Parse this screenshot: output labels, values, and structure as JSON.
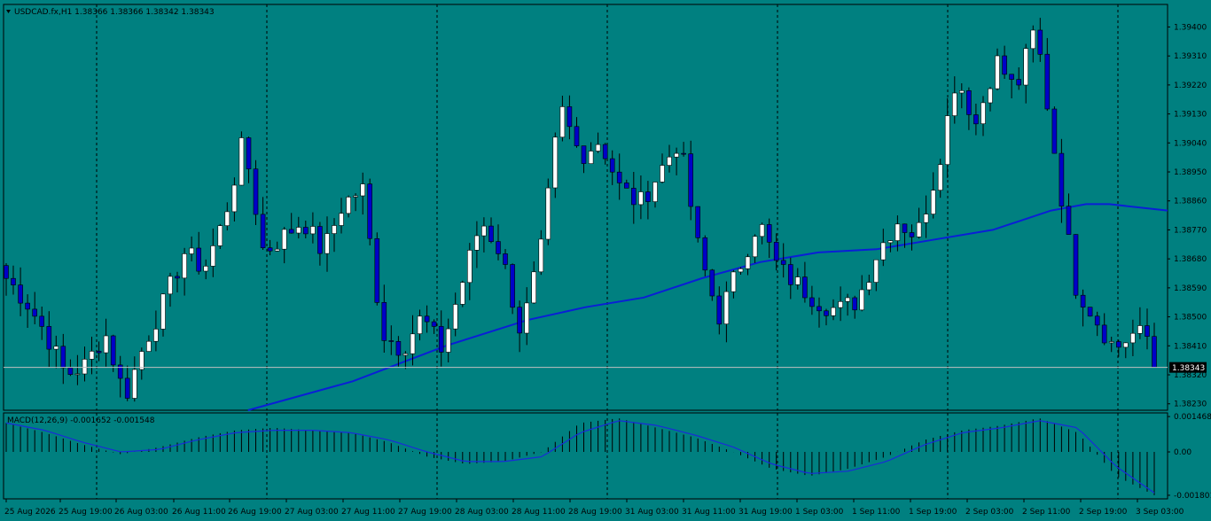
{
  "header": {
    "symbol_line": "USDCAD.fx,H1  1.38366 1.38366 1.38342 1.38343"
  },
  "macd_header": "MACD(12,26,9) -0.001652 -0.001548",
  "colors": {
    "background": "#008080",
    "bull_candle": "#ffffff",
    "bear_candle": "#0000c8",
    "wick": "#000000",
    "moving_average": "#0a1fd6",
    "grid": "#000000",
    "bid_line": "#c0c0c0",
    "macd_hist": "#000000",
    "macd_signal": "#1a2bd8"
  },
  "chart_data": [
    {
      "type": "candlestick",
      "symbol": "USDCAD.fx",
      "timeframe": "H1",
      "current_price": "1.38343",
      "price_axis": {
        "ticks": [
          "1.39400",
          "1.39310",
          "1.39220",
          "1.39130",
          "1.39040",
          "1.38950",
          "1.38860",
          "1.38770",
          "1.38680",
          "1.38590",
          "1.38500",
          "1.38410",
          "1.38320",
          "1.38230"
        ],
        "range": [
          1.3821,
          1.3947
        ]
      },
      "time_axis": {
        "ticks": [
          "25 Aug 2026",
          "25 Aug 19:00",
          "26 Aug 03:00",
          "26 Aug 11:00",
          "26 Aug 19:00",
          "27 Aug 03:00",
          "27 Aug 11:00",
          "27 Aug 19:00",
          "28 Aug 03:00",
          "28 Aug 11:00",
          "28 Aug 19:00",
          "31 Aug 03:00",
          "31 Aug 11:00",
          "31 Aug 19:00",
          "1 Sep 03:00",
          "1 Sep 11:00",
          "1 Sep 19:00",
          "2 Sep 03:00",
          "2 Sep 11:00",
          "2 Sep 19:00",
          "3 Sep 03:00"
        ]
      },
      "grid": "vertical dashed",
      "close_anchors": [
        1.3862,
        1.3855,
        1.3845,
        1.3832,
        1.3835,
        1.3845,
        1.3825,
        1.3842,
        1.3855,
        1.387,
        1.3865,
        1.388,
        1.3905,
        1.387,
        1.3875,
        1.388,
        1.387,
        1.3885,
        1.389,
        1.3845,
        1.384,
        1.385,
        1.384,
        1.386,
        1.388,
        1.387,
        1.3845,
        1.387,
        1.3915,
        1.39,
        1.3905,
        1.389,
        1.3885,
        1.3895,
        1.3905,
        1.387,
        1.385,
        1.3865,
        1.388,
        1.3865,
        1.386,
        1.3855,
        1.3852,
        1.3855,
        1.387,
        1.388,
        1.3875,
        1.3895,
        1.3925,
        1.391,
        1.393,
        1.392,
        1.394,
        1.39,
        1.386,
        1.385,
        1.384,
        1.3845,
        1.3843
      ],
      "moving_average": {
        "points": [
          [
            0.21,
            1.3821
          ],
          [
            0.3,
            1.383
          ],
          [
            0.38,
            1.3841
          ],
          [
            0.45,
            1.3849
          ],
          [
            0.5,
            1.3853
          ],
          [
            0.55,
            1.3856
          ],
          [
            0.6,
            1.3862
          ],
          [
            0.65,
            1.3867
          ],
          [
            0.7,
            1.387
          ],
          [
            0.75,
            1.3871
          ],
          [
            0.8,
            1.3874
          ],
          [
            0.85,
            1.3877
          ],
          [
            0.9,
            1.3883
          ],
          [
            0.93,
            1.3885
          ],
          [
            0.95,
            1.3885
          ],
          [
            1.0,
            1.3883
          ]
        ]
      }
    },
    {
      "type": "histogram",
      "name": "MACD(12,26,9)",
      "axis_ticks": [
        "0.001468",
        "0.00",
        "-0.001801"
      ],
      "range": [
        -0.00195,
        0.00162
      ],
      "hist_anchors": [
        0.0012,
        0.0008,
        0.0003,
        -0.0001,
        0.0002,
        0.0006,
        0.0009,
        0.001,
        0.0009,
        0.0008,
        0.0004,
        -0.0002,
        -0.0005,
        -0.0004,
        0.0,
        0.0012,
        0.0014,
        0.001,
        0.0006,
        0.0,
        -0.0007,
        -0.001,
        -0.0007,
        -0.0002,
        0.0005,
        0.0009,
        0.0011,
        0.0014,
        0.0008,
        -0.001,
        -0.0018
      ],
      "signal_anchors": [
        0.0012,
        0.0009,
        0.0004,
        0.0,
        0.0001,
        0.0005,
        0.0008,
        0.0009,
        0.0009,
        0.0008,
        0.0005,
        0.0,
        -0.0004,
        -0.0004,
        -0.0002,
        0.0008,
        0.0013,
        0.0011,
        0.0007,
        0.0002,
        -0.0005,
        -0.0009,
        -0.0008,
        -0.0004,
        0.0003,
        0.0008,
        0.001,
        0.0013,
        0.001,
        -0.0006,
        -0.0017
      ]
    }
  ]
}
